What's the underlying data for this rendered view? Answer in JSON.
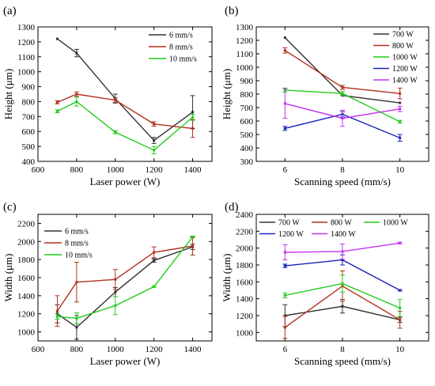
{
  "colors": {
    "black": "#333333",
    "red": "#b2301f",
    "green": "#22cc1a",
    "blue": "#1822b8",
    "violet": "#c233f2"
  },
  "chart_data": [
    {
      "id": "a",
      "panel_label": "(a)",
      "type": "line",
      "xlabel": "Laser power (W)",
      "ylabel": "Height (μm)",
      "xlim": [
        600,
        1500
      ],
      "ylim": [
        400,
        1300
      ],
      "xticks": [
        600,
        800,
        1000,
        1200,
        1400
      ],
      "yticks": [
        400,
        500,
        600,
        700,
        800,
        900,
        1000,
        1100,
        1200,
        1300
      ],
      "legend_position": "top-right",
      "series": [
        {
          "name": "6 mm/s",
          "color": "#333333",
          "x": [
            700,
            800,
            1000,
            1200,
            1400
          ],
          "y": [
            1220,
            1125,
            820,
            540,
            730
          ],
          "err": [
            0,
            25,
            30,
            20,
            110
          ]
        },
        {
          "name": "8 mm/s",
          "color": "#b2301f",
          "x": [
            700,
            800,
            1000,
            1200,
            1400
          ],
          "y": [
            795,
            850,
            810,
            650,
            620
          ],
          "err": [
            10,
            15,
            15,
            15,
            60
          ]
        },
        {
          "name": "10 mm/s",
          "color": "#22cc1a",
          "x": [
            700,
            800,
            1000,
            1200,
            1400
          ],
          "y": [
            735,
            800,
            595,
            475,
            695
          ],
          "err": [
            10,
            30,
            10,
            25,
            20
          ]
        }
      ]
    },
    {
      "id": "b",
      "panel_label": "(b)",
      "type": "line",
      "xlabel": "Scanning speed (mm/s)",
      "ylabel": "Height (μm)",
      "xlim": [
        5,
        11
      ],
      "ylim": [
        300,
        1300
      ],
      "xticks": [
        6,
        8,
        10
      ],
      "yticks": [
        300,
        400,
        500,
        600,
        700,
        800,
        900,
        1000,
        1100,
        1200,
        1300
      ],
      "legend_position": "top-right",
      "series": [
        {
          "name": "700 W",
          "color": "#333333",
          "x": [
            6,
            8,
            10
          ],
          "y": [
            1220,
            790,
            735
          ],
          "err": [
            0,
            0,
            0
          ]
        },
        {
          "name": "800 W",
          "color": "#b2301f",
          "x": [
            6,
            8,
            10
          ],
          "y": [
            1125,
            850,
            805
          ],
          "err": [
            20,
            15,
            40
          ]
        },
        {
          "name": "1000 W",
          "color": "#22cc1a",
          "x": [
            6,
            8,
            10
          ],
          "y": [
            830,
            805,
            595
          ],
          "err": [
            15,
            15,
            10
          ]
        },
        {
          "name": "1200 W",
          "color": "#1822b8",
          "x": [
            6,
            8,
            10
          ],
          "y": [
            545,
            650,
            475
          ],
          "err": [
            15,
            20,
            25
          ]
        },
        {
          "name": "1400 W",
          "color": "#c233f2",
          "x": [
            6,
            8,
            10
          ],
          "y": [
            730,
            620,
            690
          ],
          "err": [
            110,
            60,
            20
          ]
        }
      ]
    },
    {
      "id": "c",
      "panel_label": "(c)",
      "type": "line",
      "xlabel": "Laser power (W)",
      "ylabel": "Width (μm)",
      "xlim": [
        600,
        1500
      ],
      "ylim": [
        900,
        2300
      ],
      "xticks": [
        600,
        800,
        1000,
        1200,
        1400
      ],
      "yticks": [
        1000,
        1200,
        1400,
        1600,
        1800,
        2000,
        2200
      ],
      "legend_position": "top-left",
      "series": [
        {
          "name": "6 mm/s",
          "color": "#333333",
          "x": [
            700,
            800,
            1000,
            1200,
            1400
          ],
          "y": [
            1200,
            1050,
            1440,
            1790,
            1940
          ],
          "err": [
            100,
            130,
            50,
            20,
            30
          ]
        },
        {
          "name": "8 mm/s",
          "color": "#b2301f",
          "x": [
            700,
            800,
            1000,
            1200,
            1400
          ],
          "y": [
            1230,
            1550,
            1580,
            1880,
            1950
          ],
          "err": [
            170,
            220,
            110,
            60,
            100
          ]
        },
        {
          "name": "10 mm/s",
          "color": "#22cc1a",
          "x": [
            700,
            800,
            1000,
            1200,
            1400
          ],
          "y": [
            1170,
            1150,
            1290,
            1500,
            2050
          ],
          "err": [
            30,
            60,
            100,
            10,
            10
          ]
        }
      ]
    },
    {
      "id": "d",
      "panel_label": "(d)",
      "type": "line",
      "xlabel": "Scanning speed (mm/s)",
      "ylabel": "Width (μm)",
      "xlim": [
        5,
        11
      ],
      "ylim": [
        900,
        2400
      ],
      "xticks": [
        6,
        8,
        10
      ],
      "yticks": [
        1000,
        1200,
        1400,
        1600,
        1800,
        2000,
        2200,
        2400
      ],
      "legend_position": "top",
      "series": [
        {
          "name": "700 W",
          "color": "#333333",
          "x": [
            6,
            8,
            10
          ],
          "y": [
            1200,
            1310,
            1150
          ],
          "err": [
            130,
            80,
            30
          ]
        },
        {
          "name": "800 W",
          "color": "#b2301f",
          "x": [
            6,
            8,
            10
          ],
          "y": [
            1060,
            1550,
            1150
          ],
          "err": [
            130,
            180,
            100
          ]
        },
        {
          "name": "1000 W",
          "color": "#22cc1a",
          "x": [
            6,
            8,
            10
          ],
          "y": [
            1440,
            1580,
            1290
          ],
          "err": [
            30,
            100,
            100
          ]
        },
        {
          "name": "1200 W",
          "color": "#1822b8",
          "x": [
            6,
            8,
            10
          ],
          "y": [
            1790,
            1860,
            1500
          ],
          "err": [
            20,
            60,
            10
          ]
        },
        {
          "name": "1400 W",
          "color": "#c233f2",
          "x": [
            6,
            8,
            10
          ],
          "y": [
            1950,
            1960,
            2060
          ],
          "err": [
            90,
            90,
            10
          ]
        }
      ]
    }
  ]
}
